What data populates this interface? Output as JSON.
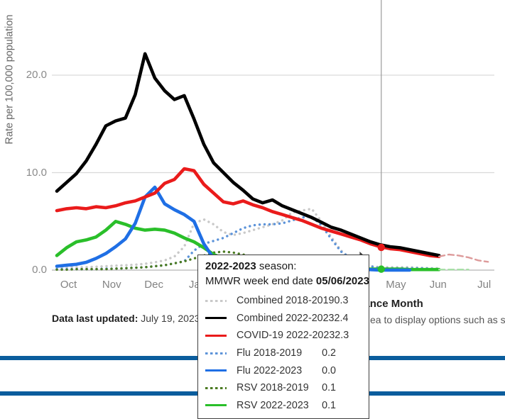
{
  "y_axis": {
    "title": "Rate per 100,000 population",
    "ticks": [
      {
        "value": 0,
        "label": "0.0"
      },
      {
        "value": 10,
        "label": "10.0"
      },
      {
        "value": 20,
        "label": "20.0"
      }
    ]
  },
  "x_axis": {
    "title": "Surveillance Month",
    "months": [
      {
        "label": "Oct",
        "week": 1.2
      },
      {
        "label": "Nov",
        "week": 5.6
      },
      {
        "label": "Dec",
        "week": 9.9
      },
      {
        "label": "Jan",
        "week": 14.35
      },
      {
        "label": "May",
        "week": 34.6
      },
      {
        "label": "Jun",
        "week": 38.9
      },
      {
        "label": "Jul",
        "week": 43.6
      }
    ]
  },
  "chart_data": {
    "type": "line",
    "x_unit": "MMWR surveillance week (Oct through Jul)",
    "ylabel": "Rate per 100,000 population",
    "xlabel": "Surveillance Month",
    "ylim": [
      0,
      25
    ],
    "grid": "horizontal",
    "series": [
      {
        "name": "Combined 2018-2019",
        "id": "combined-2018-2019",
        "style": "dotted",
        "color": "#c9c9c9",
        "width": 3.4,
        "start_week": 0,
        "values": [
          0.3,
          0.3,
          0.3,
          0.3,
          0.35,
          0.4,
          0.45,
          0.5,
          0.55,
          0.65,
          0.8,
          1.0,
          1.4,
          2.4,
          4.8,
          5.2,
          4.7,
          3.9,
          3.6,
          3.8,
          4.1,
          4.4,
          4.7,
          5.1,
          5.9,
          6.1,
          6.3,
          5.0,
          3.4,
          2.0,
          1.2,
          0.7,
          0.4,
          0.3,
          0.3,
          0.3,
          0.3,
          0.25,
          0.2,
          0.2
        ]
      },
      {
        "name": "Flu 2018-2019",
        "id": "flu-2018-2019",
        "style": "dotted",
        "color": "#5c93d9",
        "width": 3.4,
        "start_week": 0,
        "values": [
          0.1,
          0.1,
          0.1,
          0.1,
          0.1,
          0.15,
          0.15,
          0.2,
          0.25,
          0.3,
          0.4,
          0.5,
          0.7,
          0.9,
          2.0,
          2.7,
          3.0,
          3.3,
          3.8,
          4.3,
          4.6,
          4.7,
          4.7,
          4.8,
          5.1,
          5.4,
          5.5,
          4.6,
          3.2,
          1.9,
          1.2,
          0.7,
          0.4,
          0.2,
          0.2,
          0.2,
          0.2,
          0.2,
          0.15,
          0.1
        ]
      },
      {
        "name": "RSV 2018-2019",
        "id": "rsv-2018-2019",
        "style": "dotted",
        "color": "#4a7a21",
        "width": 3.4,
        "start_week": 0,
        "values": [
          0.05,
          0.05,
          0.1,
          0.1,
          0.1,
          0.1,
          0.15,
          0.2,
          0.25,
          0.3,
          0.4,
          0.5,
          0.7,
          0.9,
          1.2,
          1.5,
          1.8,
          1.9,
          1.8,
          1.6,
          1.4,
          1.2,
          1.0,
          0.8,
          0.7,
          0.6,
          0.5,
          0.4,
          0.3,
          0.25,
          0.2,
          0.15,
          0.1,
          0.1,
          0.1,
          0.1,
          0.1,
          0.05,
          0.05,
          0.05
        ]
      },
      {
        "name": "RSV 2022-2023",
        "id": "rsv-2022-2023",
        "style": "solid",
        "color": "#2abf2a",
        "width": 4.6,
        "start_week": 0,
        "values": [
          1.5,
          2.3,
          2.9,
          3.1,
          3.4,
          4.1,
          5.0,
          4.7,
          4.3,
          4.1,
          4.2,
          4.1,
          3.8,
          3.3,
          2.9,
          2.3,
          1.6,
          1.2,
          0.8,
          0.6,
          0.4,
          0.3,
          0.2,
          0.2,
          0.15,
          0.1,
          0.1,
          0.1,
          0.1,
          0.1,
          0.1,
          0.1,
          0.1,
          0.1,
          0.1,
          0.1,
          0.06,
          0.06,
          0.06,
          0.06
        ]
      },
      {
        "name": "Flu 2022-2023",
        "id": "flu-2022-2023",
        "style": "solid",
        "color": "#1f6fe5",
        "width": 4.6,
        "start_week": 0,
        "values": [
          0.4,
          0.5,
          0.6,
          0.8,
          1.2,
          1.7,
          2.4,
          3.2,
          4.8,
          7.5,
          8.5,
          6.8,
          6.2,
          5.7,
          5.0,
          2.7,
          1.2,
          0.5,
          0.3,
          0.2,
          0.2,
          0.1,
          0.1,
          0.1,
          0.1,
          0.1,
          0.1,
          0.1,
          0.1,
          0.1,
          0.1,
          0.05,
          0.05,
          0.0,
          0.0,
          0.0,
          0.0
        ]
      },
      {
        "name": "COVID-19 2022-2023",
        "id": "covid-2022-2023",
        "style": "solid",
        "color": "#ea1b1b",
        "width": 4.6,
        "start_week": 0,
        "values": [
          6.1,
          6.3,
          6.4,
          6.3,
          6.5,
          6.4,
          6.6,
          6.9,
          7.1,
          7.5,
          7.9,
          8.9,
          9.3,
          10.4,
          10.2,
          8.8,
          7.9,
          7.0,
          6.8,
          7.1,
          6.7,
          6.4,
          6.0,
          5.7,
          5.4,
          5.1,
          4.7,
          4.3,
          4.0,
          3.7,
          3.4,
          3.1,
          2.7,
          2.4,
          2.2,
          2.1,
          1.9,
          1.7,
          1.5,
          1.4
        ]
      },
      {
        "name": "Combined 2022-2023",
        "id": "combined-2022-2023",
        "style": "solid",
        "color": "#000000",
        "width": 4.6,
        "start_week": 0,
        "values": [
          8.1,
          9.0,
          9.9,
          11.2,
          12.9,
          14.8,
          15.3,
          15.6,
          18.0,
          22.2,
          19.7,
          18.4,
          17.5,
          17.9,
          15.5,
          12.9,
          11.0,
          10.0,
          9.0,
          8.2,
          7.3,
          6.9,
          7.2,
          6.6,
          6.2,
          5.8,
          5.4,
          4.9,
          4.4,
          4.1,
          3.7,
          3.3,
          2.9,
          2.6,
          2.4,
          2.3,
          2.1,
          1.9,
          1.7,
          1.5
        ]
      },
      {
        "name": "COVID-19 2022-2023 (most recent weeks, dashed)",
        "id": "covid-2022-2023-dashed",
        "style": "dashed",
        "color": "#dd9a9a",
        "width": 2.4,
        "start_week": 39,
        "values": [
          1.4,
          1.6,
          1.5,
          1.3,
          1.0,
          0.85
        ]
      },
      {
        "name": "RSV 2022-2023 (most recent weeks, dashed)",
        "id": "rsv-2022-2023-dashed",
        "style": "dashed",
        "color": "#a8dfa8",
        "width": 2.4,
        "start_week": 39,
        "values": [
          0.06,
          0.06,
          0.06,
          0.06
        ]
      }
    ],
    "hover": {
      "week": 33.1,
      "markers": [
        {
          "series": "COVID-19 2022-2023",
          "value": 2.33,
          "color": "#ea1b1b"
        },
        {
          "series": "RSV 2022-2023",
          "value": 0.1,
          "color": "#2abf2a"
        }
      ]
    }
  },
  "tooltip": {
    "season_bold": "2022-2023",
    "season_rest": " season:",
    "date_label": "MMWR week end date ",
    "date_bold": "05/06/2023",
    "rows": [
      {
        "label": "Combined 2018-2019",
        "value": "0.3",
        "color": "#c9c9c9",
        "style": "dotted"
      },
      {
        "label": "Combined 2022-2023",
        "value": "2.4",
        "color": "#000000",
        "style": "solid"
      },
      {
        "label": "COVID-19 2022-2023",
        "value": "2.3",
        "color": "#ea1b1b",
        "style": "solid"
      },
      {
        "label": "Flu 2018-2019",
        "value": "0.2",
        "color": "#5c93d9",
        "style": "dotted"
      },
      {
        "label": "Flu 2022-2023",
        "value": "0.0",
        "color": "#1f6fe5",
        "style": "solid"
      },
      {
        "label": "RSV 2018-2019",
        "value": "0.1",
        "color": "#4a7a21",
        "style": "dotted"
      },
      {
        "label": "RSV 2022-2023",
        "value": "0.1",
        "color": "#2abf2a",
        "style": "solid"
      }
    ]
  },
  "caption": {
    "left_bold": "Data last updated:",
    "left_rest": " July 19, 2023. |",
    "right_fragment": "ea to display options such as sho"
  },
  "colors": {
    "divider_blue": "#0b5d9d",
    "gridline": "#d9d9d9",
    "axis_line": "#b5b5b5",
    "hover_line": "#9a9a9a",
    "cursor": "#3d3d3d"
  }
}
